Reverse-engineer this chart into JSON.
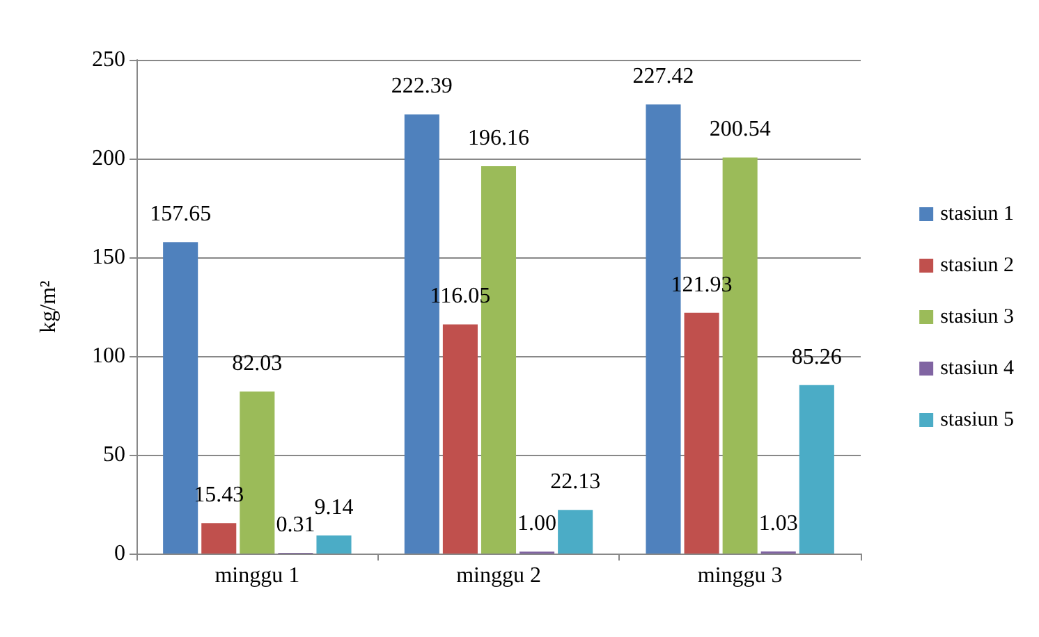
{
  "chart_data": {
    "type": "bar",
    "ylabel": "kg/m²",
    "categories": [
      "minggu 1",
      "minggu 2",
      "minggu 3"
    ],
    "series": [
      {
        "name": "stasiun 1",
        "color": "#4f81bd",
        "values": [
          157.65,
          222.39,
          227.42
        ],
        "value_labels": [
          "157.65",
          "222.39",
          "227.42"
        ]
      },
      {
        "name": "stasiun 2",
        "color": "#c0504d",
        "values": [
          15.43,
          116.05,
          121.93
        ],
        "value_labels": [
          "15.43",
          "116.05",
          "121.93"
        ]
      },
      {
        "name": "stasiun 3",
        "color": "#9bbb59",
        "values": [
          82.03,
          196.16,
          200.54
        ],
        "value_labels": [
          "82.03",
          "196.16",
          "200.54"
        ]
      },
      {
        "name": "stasiun 4",
        "color": "#8064a2",
        "values": [
          0.31,
          1.0,
          1.03
        ],
        "value_labels": [
          "0.31",
          "1.00",
          "1.03"
        ]
      },
      {
        "name": "stasiun 5",
        "color": "#4bacc6",
        "values": [
          9.14,
          22.13,
          85.26
        ],
        "value_labels": [
          "9.14",
          "22.13",
          "85.26"
        ]
      }
    ],
    "ylim": [
      0,
      250
    ],
    "yticks": [
      0,
      50,
      100,
      150,
      200,
      250
    ],
    "grid": "y",
    "legend": "right"
  }
}
